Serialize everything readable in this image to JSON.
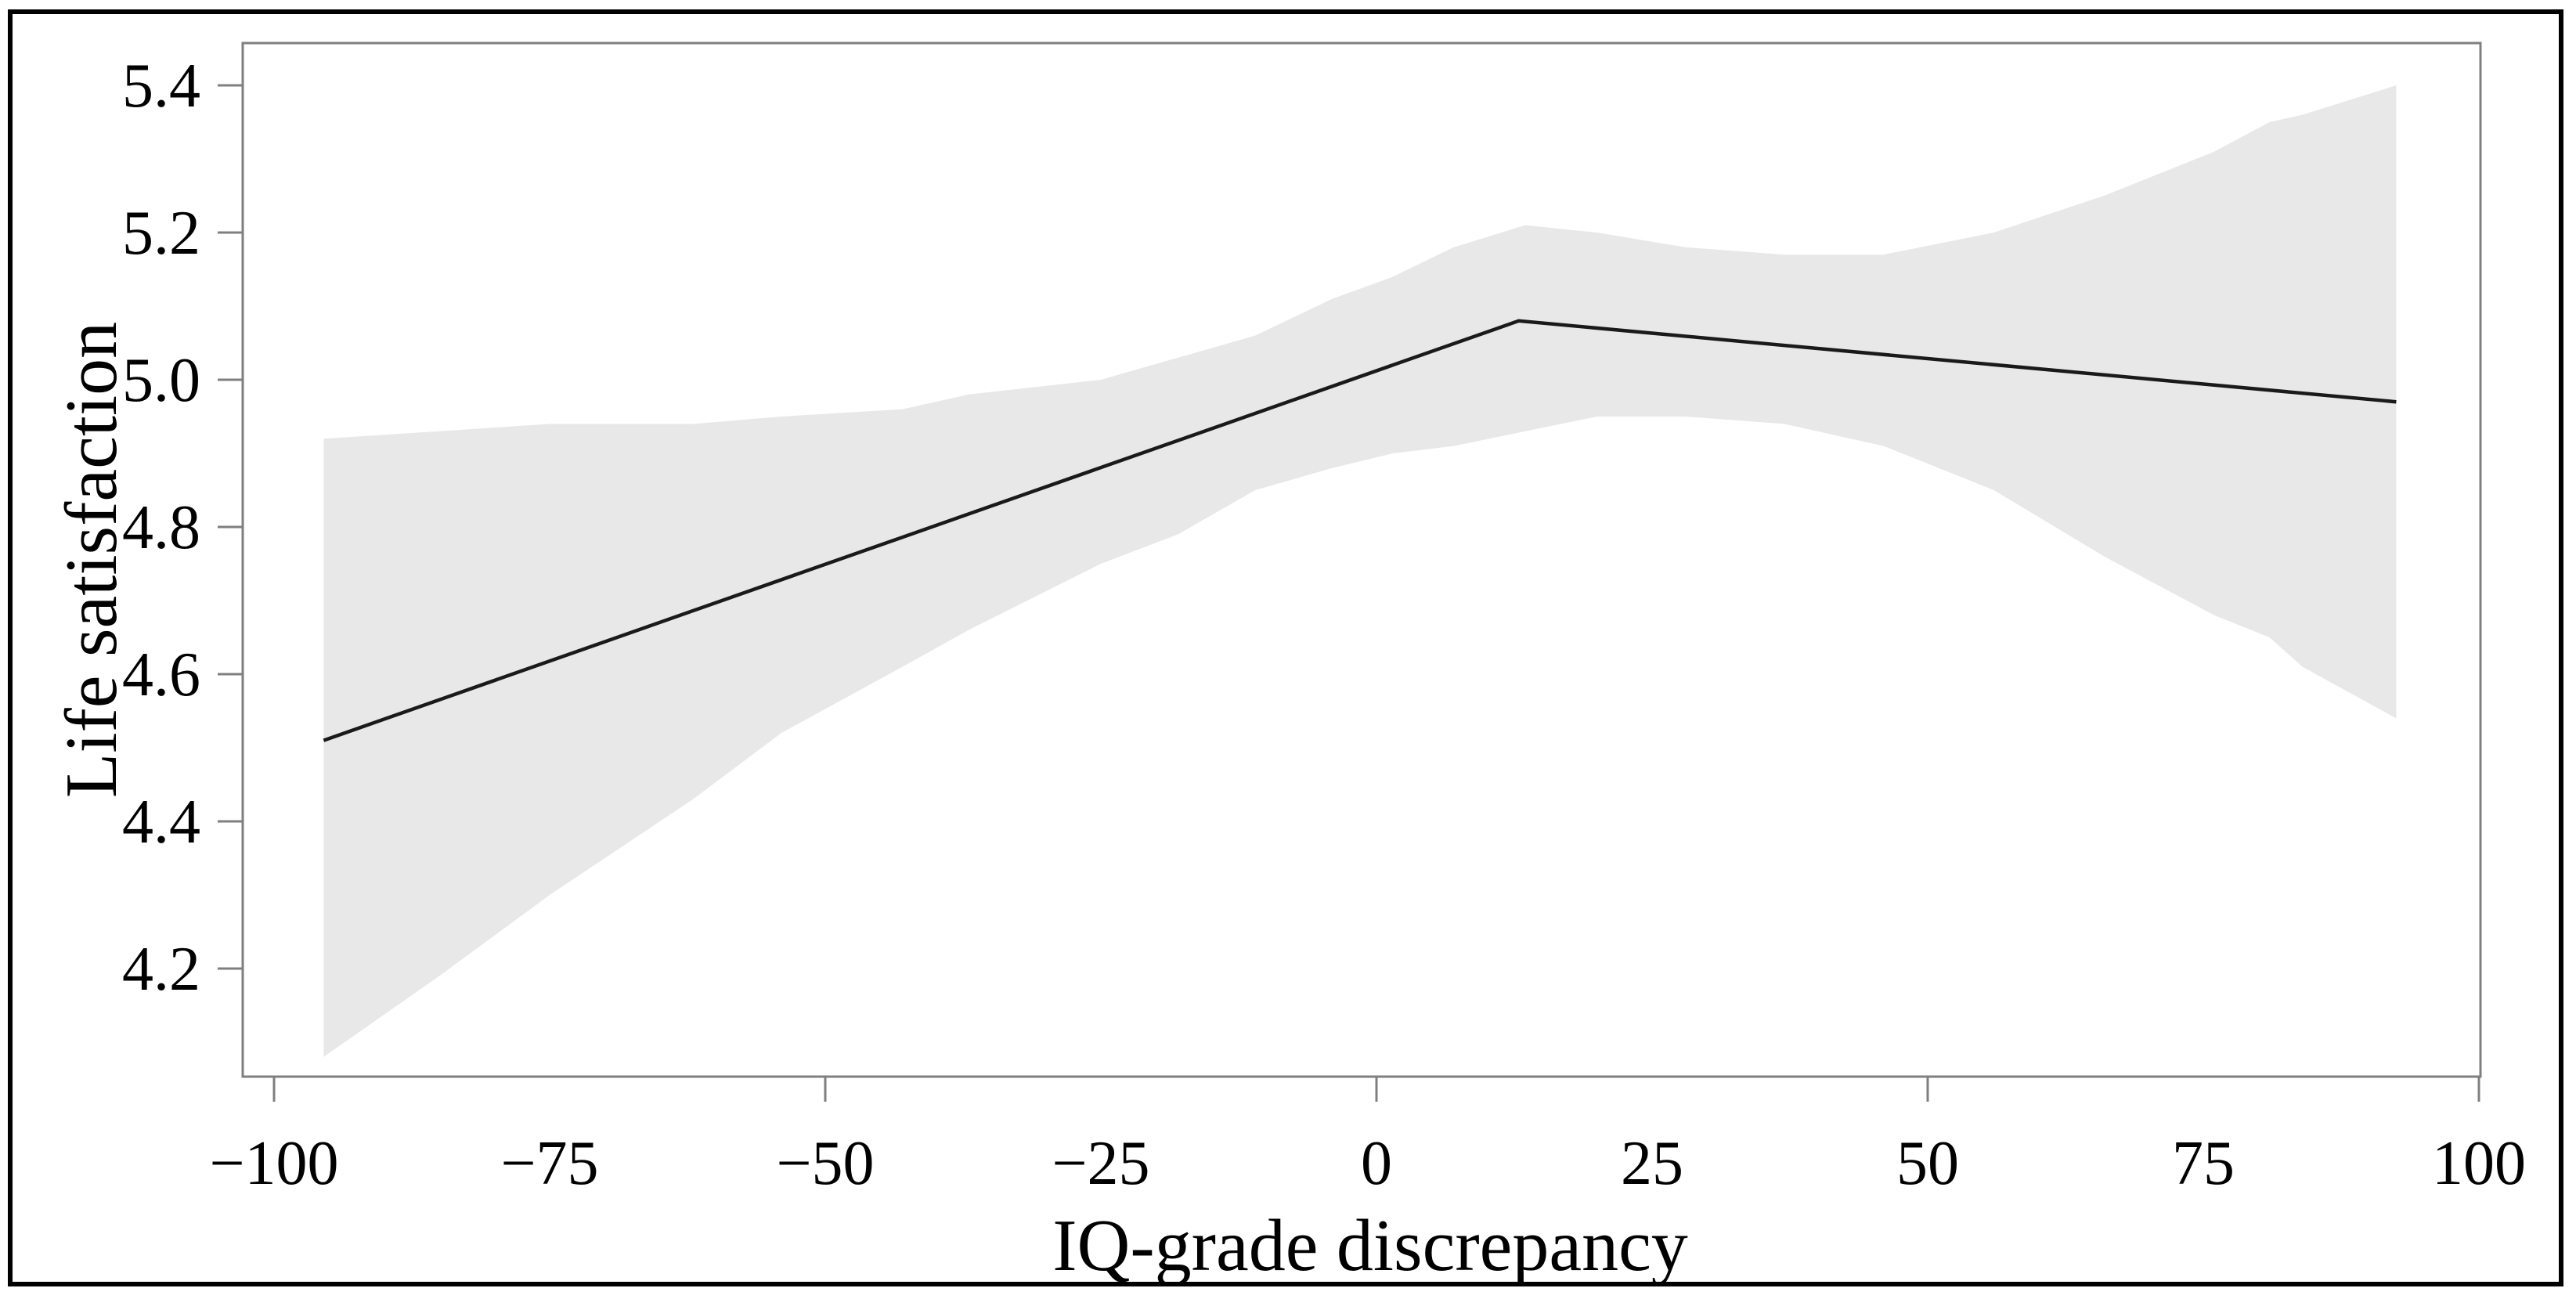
{
  "chart_data": {
    "type": "line",
    "title": "",
    "xlabel": "IQ-grade discrepancy",
    "ylabel": "Life satisfaction",
    "xlim": [
      -103,
      100
    ],
    "ylim": [
      4.05,
      5.46
    ],
    "grid": false,
    "legend": false,
    "x_tick_label_values": [
      -100,
      -75,
      -50,
      -25,
      0,
      25,
      50,
      75,
      100
    ],
    "x_tick_labels": [
      "−100",
      "−75",
      "−50",
      "−25",
      "0",
      "25",
      "50",
      "75",
      "100"
    ],
    "x_tick_mark_values": [
      -100,
      -50,
      0,
      50,
      100
    ],
    "y_tick_values": [
      5.4,
      5.2,
      5.0,
      4.8,
      4.6,
      4.4,
      4.2
    ],
    "y_tick_labels": [
      "5.4",
      "5.2",
      "5.0",
      "4.8",
      "4.6",
      "4.4",
      "4.2"
    ],
    "colors": {
      "line": "#1a1a1a",
      "band_fill": "#e8e8e8",
      "panel_border": "#7f7f7f",
      "tick": "#7f7f7f",
      "outer_frame": "#000000"
    },
    "series": [
      {
        "name": "fitted-line",
        "type": "line",
        "color": "#1a1a1a",
        "points": [
          [
            -95.5,
            4.51
          ],
          [
            12.9,
            5.08
          ],
          [
            92.5,
            4.97
          ]
        ]
      },
      {
        "name": "confidence-band",
        "type": "area",
        "color": "#e8e8e8",
        "x": [
          -95.5,
          -85,
          -75,
          -62,
          -54,
          -43,
          -37,
          -25,
          -18,
          -11,
          -4,
          1.5,
          7,
          13.5,
          20,
          28,
          37,
          46,
          56,
          66,
          76,
          81,
          84,
          92.5
        ],
        "upper": [
          4.92,
          4.93,
          4.94,
          4.94,
          4.95,
          4.96,
          4.98,
          5.0,
          5.03,
          5.06,
          5.11,
          5.14,
          5.18,
          5.21,
          5.2,
          5.18,
          5.17,
          5.17,
          5.2,
          5.25,
          5.31,
          5.35,
          5.36,
          5.4
        ],
        "lower": [
          4.08,
          4.19,
          4.3,
          4.43,
          4.52,
          4.61,
          4.66,
          4.75,
          4.79,
          4.85,
          4.88,
          4.9,
          4.91,
          4.93,
          4.95,
          4.95,
          4.94,
          4.91,
          4.85,
          4.76,
          4.68,
          4.65,
          4.61,
          4.54
        ]
      }
    ]
  }
}
